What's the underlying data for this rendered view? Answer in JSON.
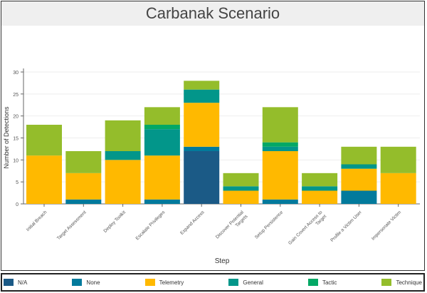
{
  "chart_data": {
    "type": "bar",
    "stacked": true,
    "title": "Carbanak Scenario",
    "xlabel": "Step",
    "ylabel": "Number of Detections",
    "ylim": [
      0,
      30
    ],
    "yticks": [
      0,
      5,
      10,
      15,
      20,
      25,
      30
    ],
    "grid": true,
    "legend_position": "bottom",
    "categories": [
      "Initial Breach",
      "Target Assessment",
      "Deploy Toolkit",
      "Escalate Privileges",
      "Expand Access",
      "Discover Potential Targets",
      "Setup Persistence",
      "Gain Covert Access to Target",
      "Profile a Victim User",
      "Impersonate Victim"
    ],
    "series": [
      {
        "name": "N/A",
        "color": "#1b5a86",
        "values": [
          0,
          0,
          0,
          0,
          12,
          0,
          0,
          0,
          0,
          0
        ]
      },
      {
        "name": "None",
        "color": "#027a9c",
        "values": [
          0,
          1,
          0,
          1,
          1,
          0,
          1,
          0,
          3,
          0
        ]
      },
      {
        "name": "Telemetry",
        "color": "#ffb900",
        "values": [
          11,
          6,
          10,
          10,
          10,
          3,
          11,
          3,
          5,
          7
        ]
      },
      {
        "name": "General",
        "color": "#02968a",
        "values": [
          0,
          0,
          2,
          6,
          3,
          1,
          1,
          1,
          1,
          0
        ]
      },
      {
        "name": "Tactic",
        "color": "#03a865",
        "values": [
          0,
          0,
          0,
          1,
          0,
          0,
          1,
          0,
          0,
          0
        ]
      },
      {
        "name": "Technique",
        "color": "#94bd2b",
        "values": [
          7,
          5,
          7,
          4,
          2,
          3,
          8,
          3,
          4,
          6
        ]
      }
    ]
  }
}
